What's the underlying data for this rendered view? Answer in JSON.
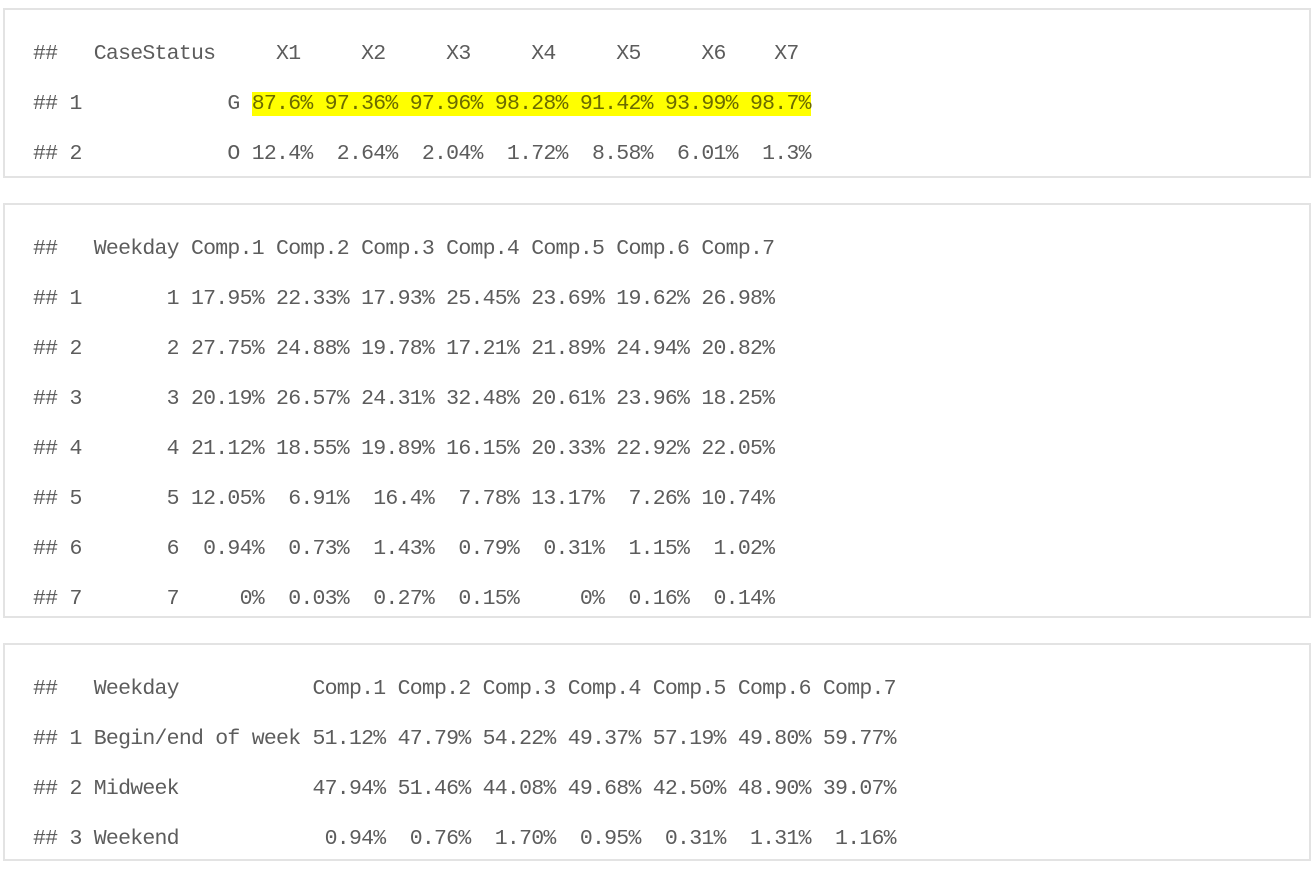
{
  "outputs": [
    {
      "id": "casestatus-table",
      "lines": [
        "##   CaseStatus     X1     X2     X3     X4     X5     X6    X7",
        "## 1",
        "## 2            O 12.4%  2.64%  2.04%  1.72%  8.58%  6.01%  1.3%"
      ],
      "line1_prefix": "## 1            G ",
      "line1_highlight": "87.6% 97.36% 97.96% 98.28% 91.42% 93.99% 98.7%"
    },
    {
      "id": "weekday-numeric-table",
      "lines": [
        "##   Weekday Comp.1 Comp.2 Comp.3 Comp.4 Comp.5 Comp.6 Comp.7",
        "## 1       1 17.95% 22.33% 17.93% 25.45% 23.69% 19.62% 26.98%",
        "## 2       2 27.75% 24.88% 19.78% 17.21% 21.89% 24.94% 20.82%",
        "## 3       3 20.19% 26.57% 24.31% 32.48% 20.61% 23.96% 18.25%",
        "## 4       4 21.12% 18.55% 19.89% 16.15% 20.33% 22.92% 22.05%",
        "## 5       5 12.05%  6.91%  16.4%  7.78% 13.17%  7.26% 10.74%",
        "## 6       6  0.94%  0.73%  1.43%  0.79%  0.31%  1.15%  1.02%",
        "## 7       7     0%  0.03%  0.27%  0.15%     0%  0.16%  0.14%"
      ]
    },
    {
      "id": "weekday-group-table",
      "lines": [
        "##   Weekday           Comp.1 Comp.2 Comp.3 Comp.4 Comp.5 Comp.6 Comp.7",
        "## 1 Begin/end of week 51.12% 47.79% 54.22% 49.37% 57.19% 49.80% 59.77%",
        "## 2 Midweek           47.94% 51.46% 44.08% 49.68% 42.50% 48.90% 39.07%",
        "## 3 Weekend            0.94%  0.76%  1.70%  0.95%  0.31%  1.31%  1.16%"
      ]
    }
  ]
}
